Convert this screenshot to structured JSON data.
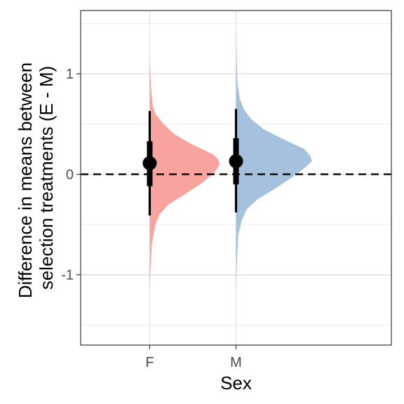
{
  "chart_data": {
    "type": "half-violin",
    "title": "",
    "xlabel": "Sex",
    "ylabel": [
      "Difference in means between",
      "selection treatments (E - M)"
    ],
    "categories": [
      "F",
      "M"
    ],
    "yticks": [
      -1,
      0,
      1
    ],
    "ytick_labels": [
      "-1",
      "0",
      "1"
    ],
    "ylim": [
      -1.7,
      1.63
    ],
    "reference_line": {
      "y": 0,
      "style": "dashed"
    },
    "grid": true,
    "legend": "none",
    "series": [
      {
        "category": "F",
        "color": "#f8a39d",
        "point_estimate": 0.11,
        "interval_66": [
          -0.12,
          0.33
        ],
        "interval_95": [
          -0.41,
          0.63
        ],
        "density_range": [
          -1.2,
          1.2
        ],
        "density_max_width": 0.81,
        "density_profile": [
          [
            -1.2,
            0.0
          ],
          [
            -0.95,
            0.01
          ],
          [
            -0.7,
            0.03
          ],
          [
            -0.5,
            0.08
          ],
          [
            -0.4,
            0.14
          ],
          [
            -0.3,
            0.27
          ],
          [
            -0.2,
            0.5
          ],
          [
            -0.1,
            0.72
          ],
          [
            0.0,
            0.9
          ],
          [
            0.05,
            0.96
          ],
          [
            0.1,
            1.0
          ],
          [
            0.15,
            0.98
          ],
          [
            0.2,
            0.9
          ],
          [
            0.3,
            0.6
          ],
          [
            0.4,
            0.35
          ],
          [
            0.5,
            0.2
          ],
          [
            0.6,
            0.08
          ],
          [
            0.7,
            0.04
          ],
          [
            0.85,
            0.02
          ],
          [
            1.0,
            0.01
          ],
          [
            1.2,
            0.0
          ]
        ]
      },
      {
        "category": "M",
        "color": "#a5c1de",
        "point_estimate": 0.13,
        "interval_66": [
          -0.1,
          0.36
        ],
        "interval_95": [
          -0.38,
          0.65
        ],
        "density_range": [
          -1.15,
          1.45
        ],
        "density_max_width": 0.88,
        "density_profile": [
          [
            -1.15,
            0.0
          ],
          [
            -0.9,
            0.01
          ],
          [
            -0.6,
            0.03
          ],
          [
            -0.45,
            0.08
          ],
          [
            -0.35,
            0.14
          ],
          [
            -0.25,
            0.28
          ],
          [
            -0.15,
            0.5
          ],
          [
            -0.05,
            0.7
          ],
          [
            0.05,
            0.88
          ],
          [
            0.1,
            0.96
          ],
          [
            0.13,
            1.0
          ],
          [
            0.18,
            0.98
          ],
          [
            0.25,
            0.9
          ],
          [
            0.35,
            0.62
          ],
          [
            0.45,
            0.36
          ],
          [
            0.55,
            0.2
          ],
          [
            0.65,
            0.1
          ],
          [
            0.75,
            0.05
          ],
          [
            0.9,
            0.02
          ],
          [
            1.1,
            0.01
          ],
          [
            1.45,
            0.0
          ]
        ]
      }
    ]
  }
}
